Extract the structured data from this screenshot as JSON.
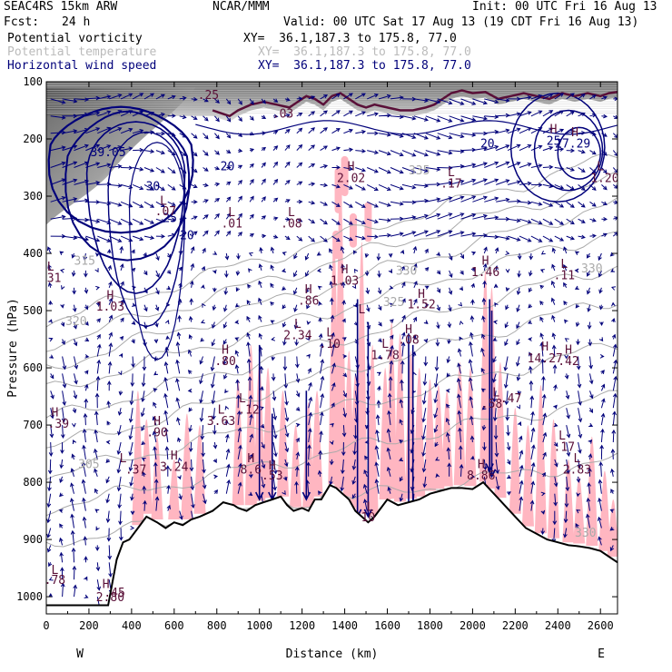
{
  "header": {
    "model": "SEAC4RS 15km ARW",
    "org": "NCAR/MMM",
    "init": "Init: 00 UTC Fri 16 Aug 13",
    "fcst_label": "Fcst:",
    "fcst_value": "24 h",
    "valid": "Valid: 00 UTC Sat 17 Aug 13 (19 CDT Fri 16 Aug 13)",
    "fields": [
      {
        "name": "Potential vorticity",
        "xy": "XY=  36.1,187.3 to 175.8, 77.0",
        "color": "#000000"
      },
      {
        "name": "Potential temperature",
        "xy": "XY=  36.1,187.3 to 175.8, 77.0",
        "color": "#bbbbbb"
      },
      {
        "name": "Horizontal wind speed",
        "xy": "XY=  36.1,187.3 to 175.8, 77.0",
        "color": "#00007a"
      }
    ]
  },
  "colors": {
    "pv_shade": "#ffb6c1",
    "wind": "#00007a",
    "theta": "#aaaaaa",
    "pv_label": "#5a1038",
    "terrain": "#000000"
  },
  "chart_data": {
    "type": "cross-section",
    "xlabel": "Distance (km)",
    "ylabel": "Pressure (hPa)",
    "xlim": [
      0,
      2680
    ],
    "ylim": [
      1030,
      100
    ],
    "x_ticks": [
      0,
      200,
      400,
      600,
      800,
      1000,
      1200,
      1400,
      1600,
      1800,
      2000,
      2200,
      2400,
      2600
    ],
    "y_ticks": [
      100,
      200,
      300,
      400,
      500,
      600,
      700,
      800,
      900,
      1000
    ],
    "x_ends": {
      "left": "W",
      "right": "E"
    },
    "terrain_surface": [
      [
        0,
        1015
      ],
      [
        290,
        1015
      ],
      [
        330,
        935
      ],
      [
        360,
        905
      ],
      [
        390,
        900
      ],
      [
        430,
        880
      ],
      [
        470,
        860
      ],
      [
        520,
        870
      ],
      [
        560,
        880
      ],
      [
        600,
        870
      ],
      [
        640,
        875
      ],
      [
        680,
        865
      ],
      [
        720,
        860
      ],
      [
        780,
        850
      ],
      [
        830,
        835
      ],
      [
        880,
        840
      ],
      [
        900,
        845
      ],
      [
        940,
        850
      ],
      [
        980,
        840
      ],
      [
        1020,
        835
      ],
      [
        1060,
        830
      ],
      [
        1100,
        825
      ],
      [
        1130,
        840
      ],
      [
        1160,
        850
      ],
      [
        1200,
        845
      ],
      [
        1230,
        850
      ],
      [
        1260,
        830
      ],
      [
        1290,
        830
      ],
      [
        1330,
        805
      ],
      [
        1360,
        810
      ],
      [
        1390,
        820
      ],
      [
        1420,
        830
      ],
      [
        1450,
        850
      ],
      [
        1480,
        860
      ],
      [
        1510,
        870
      ],
      [
        1540,
        860
      ],
      [
        1560,
        850
      ],
      [
        1600,
        830
      ],
      [
        1650,
        840
      ],
      [
        1700,
        835
      ],
      [
        1750,
        830
      ],
      [
        1800,
        820
      ],
      [
        1850,
        815
      ],
      [
        1900,
        810
      ],
      [
        1950,
        810
      ],
      [
        2000,
        812
      ],
      [
        2050,
        800
      ],
      [
        2100,
        820
      ],
      [
        2150,
        840
      ],
      [
        2200,
        860
      ],
      [
        2250,
        880
      ],
      [
        2300,
        890
      ],
      [
        2350,
        900
      ],
      [
        2400,
        905
      ],
      [
        2450,
        910
      ],
      [
        2500,
        912
      ],
      [
        2550,
        915
      ],
      [
        2600,
        920
      ],
      [
        2640,
        930
      ],
      [
        2680,
        940
      ]
    ],
    "tropopause_pv": [
      [
        780,
        150
      ],
      [
        820,
        155
      ],
      [
        860,
        160
      ],
      [
        900,
        150
      ],
      [
        960,
        140
      ],
      [
        1020,
        135
      ],
      [
        1080,
        140
      ],
      [
        1140,
        145
      ],
      [
        1180,
        135
      ],
      [
        1220,
        125
      ],
      [
        1260,
        130
      ],
      [
        1300,
        140
      ],
      [
        1340,
        125
      ],
      [
        1380,
        120
      ],
      [
        1420,
        130
      ],
      [
        1460,
        140
      ],
      [
        1500,
        145
      ],
      [
        1540,
        140
      ],
      [
        1600,
        145
      ],
      [
        1660,
        150
      ],
      [
        1720,
        150
      ],
      [
        1780,
        145
      ],
      [
        1820,
        140
      ],
      [
        1860,
        130
      ],
      [
        1900,
        120
      ],
      [
        1950,
        115
      ],
      [
        2000,
        120
      ],
      [
        2060,
        118
      ],
      [
        2120,
        130
      ],
      [
        2180,
        125
      ],
      [
        2240,
        120
      ],
      [
        2300,
        125
      ],
      [
        2360,
        130
      ],
      [
        2420,
        120
      ],
      [
        2480,
        125
      ],
      [
        2540,
        120
      ],
      [
        2600,
        125
      ],
      [
        2640,
        120
      ],
      [
        2680,
        118
      ]
    ],
    "labels": [
      {
        "text": "39.05",
        "x": 290,
        "p": 230,
        "kind": "wind"
      },
      {
        "text": "30",
        "x": 500,
        "p": 290,
        "kind": "wind"
      },
      {
        "text": "25",
        "x": 580,
        "p": 345,
        "kind": "wind"
      },
      {
        "text": "20",
        "x": 660,
        "p": 375,
        "kind": "wind"
      },
      {
        "text": "20",
        "x": 850,
        "p": 255,
        "kind": "wind"
      },
      {
        "text": "20",
        "x": 2070,
        "p": 215,
        "kind": "wind"
      },
      {
        "text": "25",
        "x": 2380,
        "p": 210,
        "kind": "wind"
      },
      {
        "text": "27.29",
        "x": 2470,
        "p": 215,
        "kind": "wind"
      },
      {
        "text": "335",
        "x": 1750,
        "p": 262,
        "kind": "theta"
      },
      {
        "text": "330",
        "x": 1690,
        "p": 437,
        "kind": "theta"
      },
      {
        "text": "325",
        "x": 1630,
        "p": 492,
        "kind": "theta"
      },
      {
        "text": "320",
        "x": 140,
        "p": 525,
        "kind": "theta"
      },
      {
        "text": "315",
        "x": 180,
        "p": 420,
        "kind": "theta"
      },
      {
        "text": "305",
        "x": 200,
        "p": 775,
        "kind": "theta"
      },
      {
        "text": "330",
        "x": 2560,
        "p": 433,
        "kind": "theta"
      },
      {
        "text": "330",
        "x": 2530,
        "p": 895,
        "kind": "theta"
      },
      {
        "text": "L",
        "x": 550,
        "p": 315,
        "kind": "pv"
      },
      {
        "text": ".07",
        "x": 560,
        "p": 333,
        "kind": "pv"
      },
      {
        "text": "L",
        "x": 870,
        "p": 335,
        "kind": "pv"
      },
      {
        "text": ".01",
        "x": 870,
        "p": 355,
        "kind": "pv"
      },
      {
        "text": "L",
        "x": 1150,
        "p": 335,
        "kind": "pv"
      },
      {
        "text": ".08",
        "x": 1150,
        "p": 355,
        "kind": "pv"
      },
      {
        "text": "H",
        "x": 1430,
        "p": 255,
        "kind": "pv"
      },
      {
        "text": "2.02",
        "x": 1430,
        "p": 275,
        "kind": "pv"
      },
      {
        "text": "L",
        "x": 1900,
        "p": 265,
        "kind": "pv"
      },
      {
        "text": ".17",
        "x": 1900,
        "p": 285,
        "kind": "pv"
      },
      {
        "text": "H",
        "x": 2380,
        "p": 190,
        "kind": "pv"
      },
      {
        "text": "H",
        "x": 2480,
        "p": 195,
        "kind": "pv"
      },
      {
        "text": "L",
        "x": 2600,
        "p": 255,
        "kind": "pv"
      },
      {
        "text": "1.20",
        "x": 2620,
        "p": 275,
        "kind": "pv"
      },
      {
        "text": "L",
        "x": 20,
        "p": 430,
        "kind": "pv"
      },
      {
        "text": ".31",
        "x": 20,
        "p": 450,
        "kind": "pv"
      },
      {
        "text": "H",
        "x": 300,
        "p": 480,
        "kind": "pv"
      },
      {
        "text": "1.03",
        "x": 300,
        "p": 500,
        "kind": "pv"
      },
      {
        "text": "H",
        "x": 1400,
        "p": 435,
        "kind": "pv"
      },
      {
        "text": "1.03",
        "x": 1400,
        "p": 455,
        "kind": "pv"
      },
      {
        "text": "H",
        "x": 1230,
        "p": 470,
        "kind": "pv"
      },
      {
        "text": ".86",
        "x": 1230,
        "p": 490,
        "kind": "pv"
      },
      {
        "text": "L",
        "x": 1480,
        "p": 505,
        "kind": "pv"
      },
      {
        "text": "H",
        "x": 1760,
        "p": 478,
        "kind": "pv"
      },
      {
        "text": "1.52",
        "x": 1760,
        "p": 496,
        "kind": "pv"
      },
      {
        "text": "H",
        "x": 2060,
        "p": 420,
        "kind": "pv"
      },
      {
        "text": "1.46",
        "x": 2060,
        "p": 440,
        "kind": "pv"
      },
      {
        "text": "L",
        "x": 2430,
        "p": 425,
        "kind": "pv"
      },
      {
        "text": ".11",
        "x": 2430,
        "p": 445,
        "kind": "pv"
      },
      {
        "text": "L",
        "x": 1180,
        "p": 530,
        "kind": "pv"
      },
      {
        "text": "2.34",
        "x": 1180,
        "p": 550,
        "kind": "pv"
      },
      {
        "text": "L",
        "x": 1330,
        "p": 545,
        "kind": "pv"
      },
      {
        "text": ".10",
        "x": 1330,
        "p": 565,
        "kind": "pv"
      },
      {
        "text": "L",
        "x": 1590,
        "p": 565,
        "kind": "pv"
      },
      {
        "text": "1.78",
        "x": 1590,
        "p": 585,
        "kind": "pv"
      },
      {
        "text": "H",
        "x": 1700,
        "p": 540,
        "kind": "pv"
      },
      {
        "text": ".08",
        "x": 1700,
        "p": 558,
        "kind": "pv"
      },
      {
        "text": "H",
        "x": 840,
        "p": 575,
        "kind": "pv"
      },
      {
        "text": ".80",
        "x": 840,
        "p": 595,
        "kind": "pv"
      },
      {
        "text": "H",
        "x": 2340,
        "p": 570,
        "kind": "pv"
      },
      {
        "text": "14.27",
        "x": 2340,
        "p": 590,
        "kind": "pv"
      },
      {
        "text": "H",
        "x": 2450,
        "p": 575,
        "kind": "pv"
      },
      {
        "text": ".42",
        "x": 2450,
        "p": 595,
        "kind": "pv"
      },
      {
        "text": "H",
        "x": 40,
        "p": 685,
        "kind": "pv"
      },
      {
        "text": "1.39",
        "x": 40,
        "p": 705,
        "kind": "pv"
      },
      {
        "text": "H",
        "x": 520,
        "p": 700,
        "kind": "pv"
      },
      {
        "text": ".90",
        "x": 520,
        "p": 720,
        "kind": "pv"
      },
      {
        "text": "L",
        "x": 820,
        "p": 680,
        "kind": "pv"
      },
      {
        "text": "3.63",
        "x": 820,
        "p": 700,
        "kind": "pv"
      },
      {
        "text": "L",
        "x": 920,
        "p": 660,
        "kind": "pv"
      },
      {
        "text": ".12",
        "x": 950,
        "p": 680,
        "kind": "pv"
      },
      {
        "text": "L",
        "x": 2110,
        "p": 650,
        "kind": "pv"
      },
      {
        "text": ".47",
        "x": 2180,
        "p": 660,
        "kind": "pv"
      },
      {
        "text": ".58",
        "x": 2090,
        "p": 670,
        "kind": "pv"
      },
      {
        "text": "L",
        "x": 2420,
        "p": 725,
        "kind": "pv"
      },
      {
        "text": ".17",
        "x": 2430,
        "p": 745,
        "kind": "pv"
      },
      {
        "text": "L",
        "x": 2490,
        "p": 765,
        "kind": "pv"
      },
      {
        "text": "2.83",
        "x": 2490,
        "p": 785,
        "kind": "pv"
      },
      {
        "text": "L",
        "x": 360,
        "p": 765,
        "kind": "pv"
      },
      {
        "text": ".37",
        "x": 420,
        "p": 785,
        "kind": "pv"
      },
      {
        "text": "H",
        "x": 600,
        "p": 760,
        "kind": "pv"
      },
      {
        "text": "3.24",
        "x": 600,
        "p": 780,
        "kind": "pv"
      },
      {
        "text": "H",
        "x": 960,
        "p": 765,
        "kind": "pv"
      },
      {
        "text": "8.6",
        "x": 960,
        "p": 785,
        "kind": "pv"
      },
      {
        "text": "H",
        "x": 1060,
        "p": 778,
        "kind": "pv"
      },
      {
        "text": ".53",
        "x": 1060,
        "p": 795,
        "kind": "pv"
      },
      {
        "text": "H",
        "x": 2040,
        "p": 775,
        "kind": "pv"
      },
      {
        "text": "8.86",
        "x": 2040,
        "p": 795,
        "kind": "pv"
      },
      {
        "text": "L",
        "x": 1520,
        "p": 850,
        "kind": "pv"
      },
      {
        "text": "10",
        "x": 1510,
        "p": 868,
        "kind": "pv"
      },
      {
        "text": "L",
        "x": 40,
        "p": 960,
        "kind": "pv"
      },
      {
        "text": ".78",
        "x": 40,
        "p": 978,
        "kind": "pv"
      },
      {
        "text": "H",
        "x": 280,
        "p": 985,
        "kind": "pv"
      },
      {
        "text": ".45",
        "x": 320,
        "p": 1000,
        "kind": "pv"
      },
      {
        "text": "2.80",
        "x": 300,
        "p": 1008,
        "kind": "pv"
      },
      {
        "text": ".03",
        "x": 1110,
        "p": 163,
        "kind": "pv"
      },
      {
        "text": ".25",
        "x": 760,
        "p": 130,
        "kind": "pv"
      }
    ]
  }
}
